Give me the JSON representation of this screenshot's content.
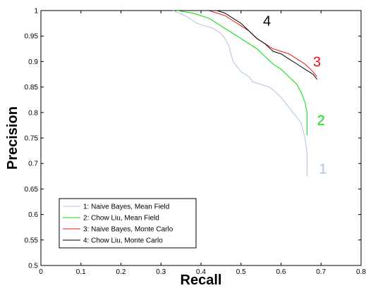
{
  "chart_data": {
    "type": "line",
    "title": "",
    "xlabel": "Recall",
    "ylabel": "Precision",
    "xlim": [
      0,
      0.8
    ],
    "ylim": [
      0.5,
      1
    ],
    "x_ticks": [
      0,
      0.1,
      0.2,
      0.3,
      0.4,
      0.5,
      0.6,
      0.7,
      0.8
    ],
    "x_tick_labels": [
      "0",
      "0.1",
      "0.2",
      "0.3",
      "0.4",
      "0.5",
      "0.6",
      "0.7",
      "0.8"
    ],
    "y_ticks": [
      0.5,
      0.55,
      0.6,
      0.65,
      0.7,
      0.75,
      0.8,
      0.85,
      0.9,
      0.95,
      1
    ],
    "y_tick_labels": [
      "0.5",
      "0.55",
      "0.6",
      "0.65",
      "0.7",
      "0.75",
      "0.8",
      "0.85",
      "0.9",
      "0.95",
      "1"
    ],
    "grid": false,
    "legend_position": "bottom-left",
    "series": [
      {
        "name": "1: Naive Bayes, Mean Field",
        "tag": "1",
        "color": "#a8c4e4",
        "x": [
          0.33,
          0.36,
          0.38,
          0.39,
          0.41,
          0.43,
          0.45,
          0.46,
          0.47,
          0.48,
          0.49,
          0.5,
          0.51,
          0.52,
          0.53,
          0.55,
          0.57,
          0.58,
          0.6,
          0.61,
          0.62,
          0.63,
          0.64,
          0.65,
          0.66,
          0.665,
          0.665
        ],
        "y": [
          1,
          0.99,
          0.98,
          0.975,
          0.97,
          0.965,
          0.955,
          0.945,
          0.93,
          0.9,
          0.89,
          0.88,
          0.875,
          0.87,
          0.86,
          0.855,
          0.85,
          0.845,
          0.83,
          0.82,
          0.81,
          0.8,
          0.79,
          0.78,
          0.75,
          0.72,
          0.675
        ]
      },
      {
        "name": "2: Chow Liu, Mean Field",
        "tag": "2",
        "color": "#00dd00",
        "x": [
          0.34,
          0.38,
          0.42,
          0.44,
          0.46,
          0.48,
          0.5,
          0.52,
          0.54,
          0.56,
          0.58,
          0.6,
          0.62,
          0.64,
          0.65,
          0.66,
          0.665,
          0.665
        ],
        "y": [
          1,
          0.995,
          0.985,
          0.975,
          0.965,
          0.955,
          0.945,
          0.935,
          0.925,
          0.91,
          0.895,
          0.885,
          0.87,
          0.855,
          0.84,
          0.82,
          0.8,
          0.755
        ]
      },
      {
        "name": "3: Naive Bayes, Monte Carlo",
        "tag": "3",
        "color": "#ee1111",
        "x": [
          0.4,
          0.42,
          0.44,
          0.46,
          0.48,
          0.5,
          0.52,
          0.54,
          0.56,
          0.58,
          0.6,
          0.62,
          0.64,
          0.66,
          0.68,
          0.69
        ],
        "y": [
          1,
          1,
          0.995,
          0.99,
          0.98,
          0.97,
          0.96,
          0.945,
          0.935,
          0.925,
          0.92,
          0.915,
          0.905,
          0.895,
          0.88,
          0.87
        ]
      },
      {
        "name": "4: Chow Liu, Monte Carlo",
        "tag": "4",
        "color": "#000000",
        "x": [
          0.4,
          0.42,
          0.44,
          0.46,
          0.48,
          0.5,
          0.52,
          0.54,
          0.56,
          0.58,
          0.6,
          0.62,
          0.64,
          0.66,
          0.68,
          0.69
        ],
        "y": [
          1,
          1,
          1,
          0.995,
          0.985,
          0.975,
          0.96,
          0.945,
          0.935,
          0.92,
          0.915,
          0.905,
          0.895,
          0.885,
          0.875,
          0.865
        ]
      }
    ]
  }
}
